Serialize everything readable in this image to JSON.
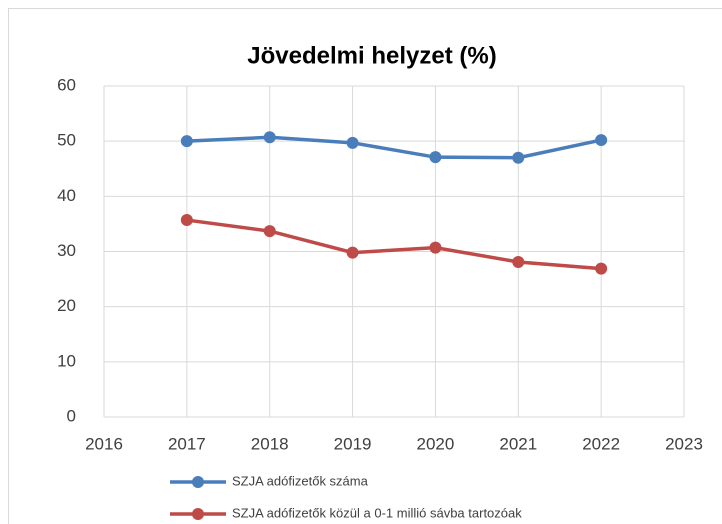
{
  "chart_data": {
    "type": "line",
    "title": "Jövedelmi helyzet (%)",
    "x": [
      2017,
      2018,
      2019,
      2020,
      2021,
      2022
    ],
    "series": [
      {
        "name": "SZJA adófizetők száma",
        "color": "#4a7ebb",
        "values": [
          50.0,
          50.7,
          49.7,
          47.1,
          47.0,
          50.2
        ]
      },
      {
        "name": "SZJA adófizetők közül a 0-1 millió sávba tartozóak",
        "color": "#be4b48",
        "values": [
          35.7,
          33.7,
          29.8,
          30.7,
          28.1,
          26.9
        ]
      }
    ],
    "xlim": [
      2016,
      2023
    ],
    "xticks": [
      2016,
      2017,
      2018,
      2019,
      2020,
      2021,
      2022,
      2023
    ],
    "ylim": [
      0,
      60
    ],
    "yticks": [
      0,
      10,
      20,
      30,
      40,
      50,
      60
    ],
    "grid": true,
    "legend": "bottom"
  }
}
